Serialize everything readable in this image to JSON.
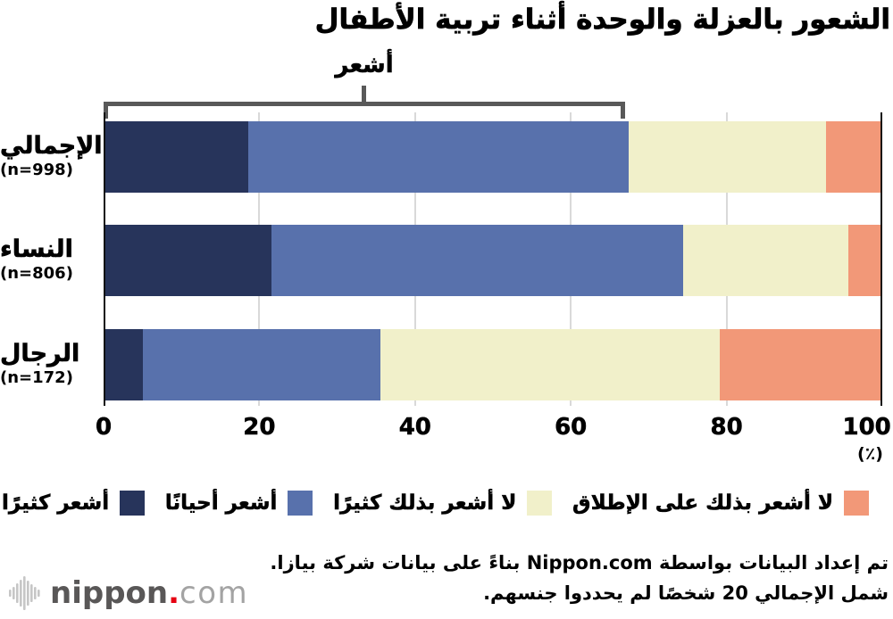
{
  "title": "الشعور بالعزلة والوحدة أثناء تربية الأطفال",
  "chart_data": {
    "type": "bar",
    "stacked": true,
    "orientation": "horizontal",
    "title": "الشعور بالعزلة والوحدة أثناء تربية الأطفال",
    "categories": [
      "الإجمالي",
      "النساء",
      "الرجال"
    ],
    "sample_labels": [
      "(n=998)",
      "(n=806)",
      "(n=172)"
    ],
    "series": [
      {
        "name": "أشعر كثيرًا",
        "color": "#27345b",
        "values": [
          18.6,
          21.6,
          5.0
        ]
      },
      {
        "name": "أشعر أحيانًا",
        "color": "#5871ac",
        "values": [
          48.8,
          52.8,
          30.6
        ]
      },
      {
        "name": "لا أشعر بذلك كثيرًا",
        "color": "#f1f0ca",
        "values": [
          25.4,
          21.2,
          43.5
        ]
      },
      {
        "name": "لا أشعر بذلك على الإطلاق",
        "color": "#f29878",
        "values": [
          7.2,
          4.4,
          20.9
        ]
      }
    ],
    "x_ticks": [
      0,
      20,
      40,
      60,
      80,
      100
    ],
    "xlim": [
      0,
      100
    ],
    "axis_unit_label": "(٪)",
    "grid": true,
    "legend_position": "bottom",
    "bracket": {
      "label": "أشعر",
      "from_pct": 0,
      "to_pct": 67.4
    }
  },
  "colors": {
    "bracket": "#595959",
    "gridline": "#d9d9d9",
    "axis_edge": "#111111"
  },
  "footer": {
    "line1": "تم إعداد البيانات بواسطة Nippon.com بناءً على بيانات شركة بيازا.",
    "line2": "شمل الإجمالي 20 شخصًا لم يحددوا جنسهم."
  },
  "logo": {
    "brand_bold": "nippon",
    "brand_dot": ".",
    "brand_light": "com"
  }
}
